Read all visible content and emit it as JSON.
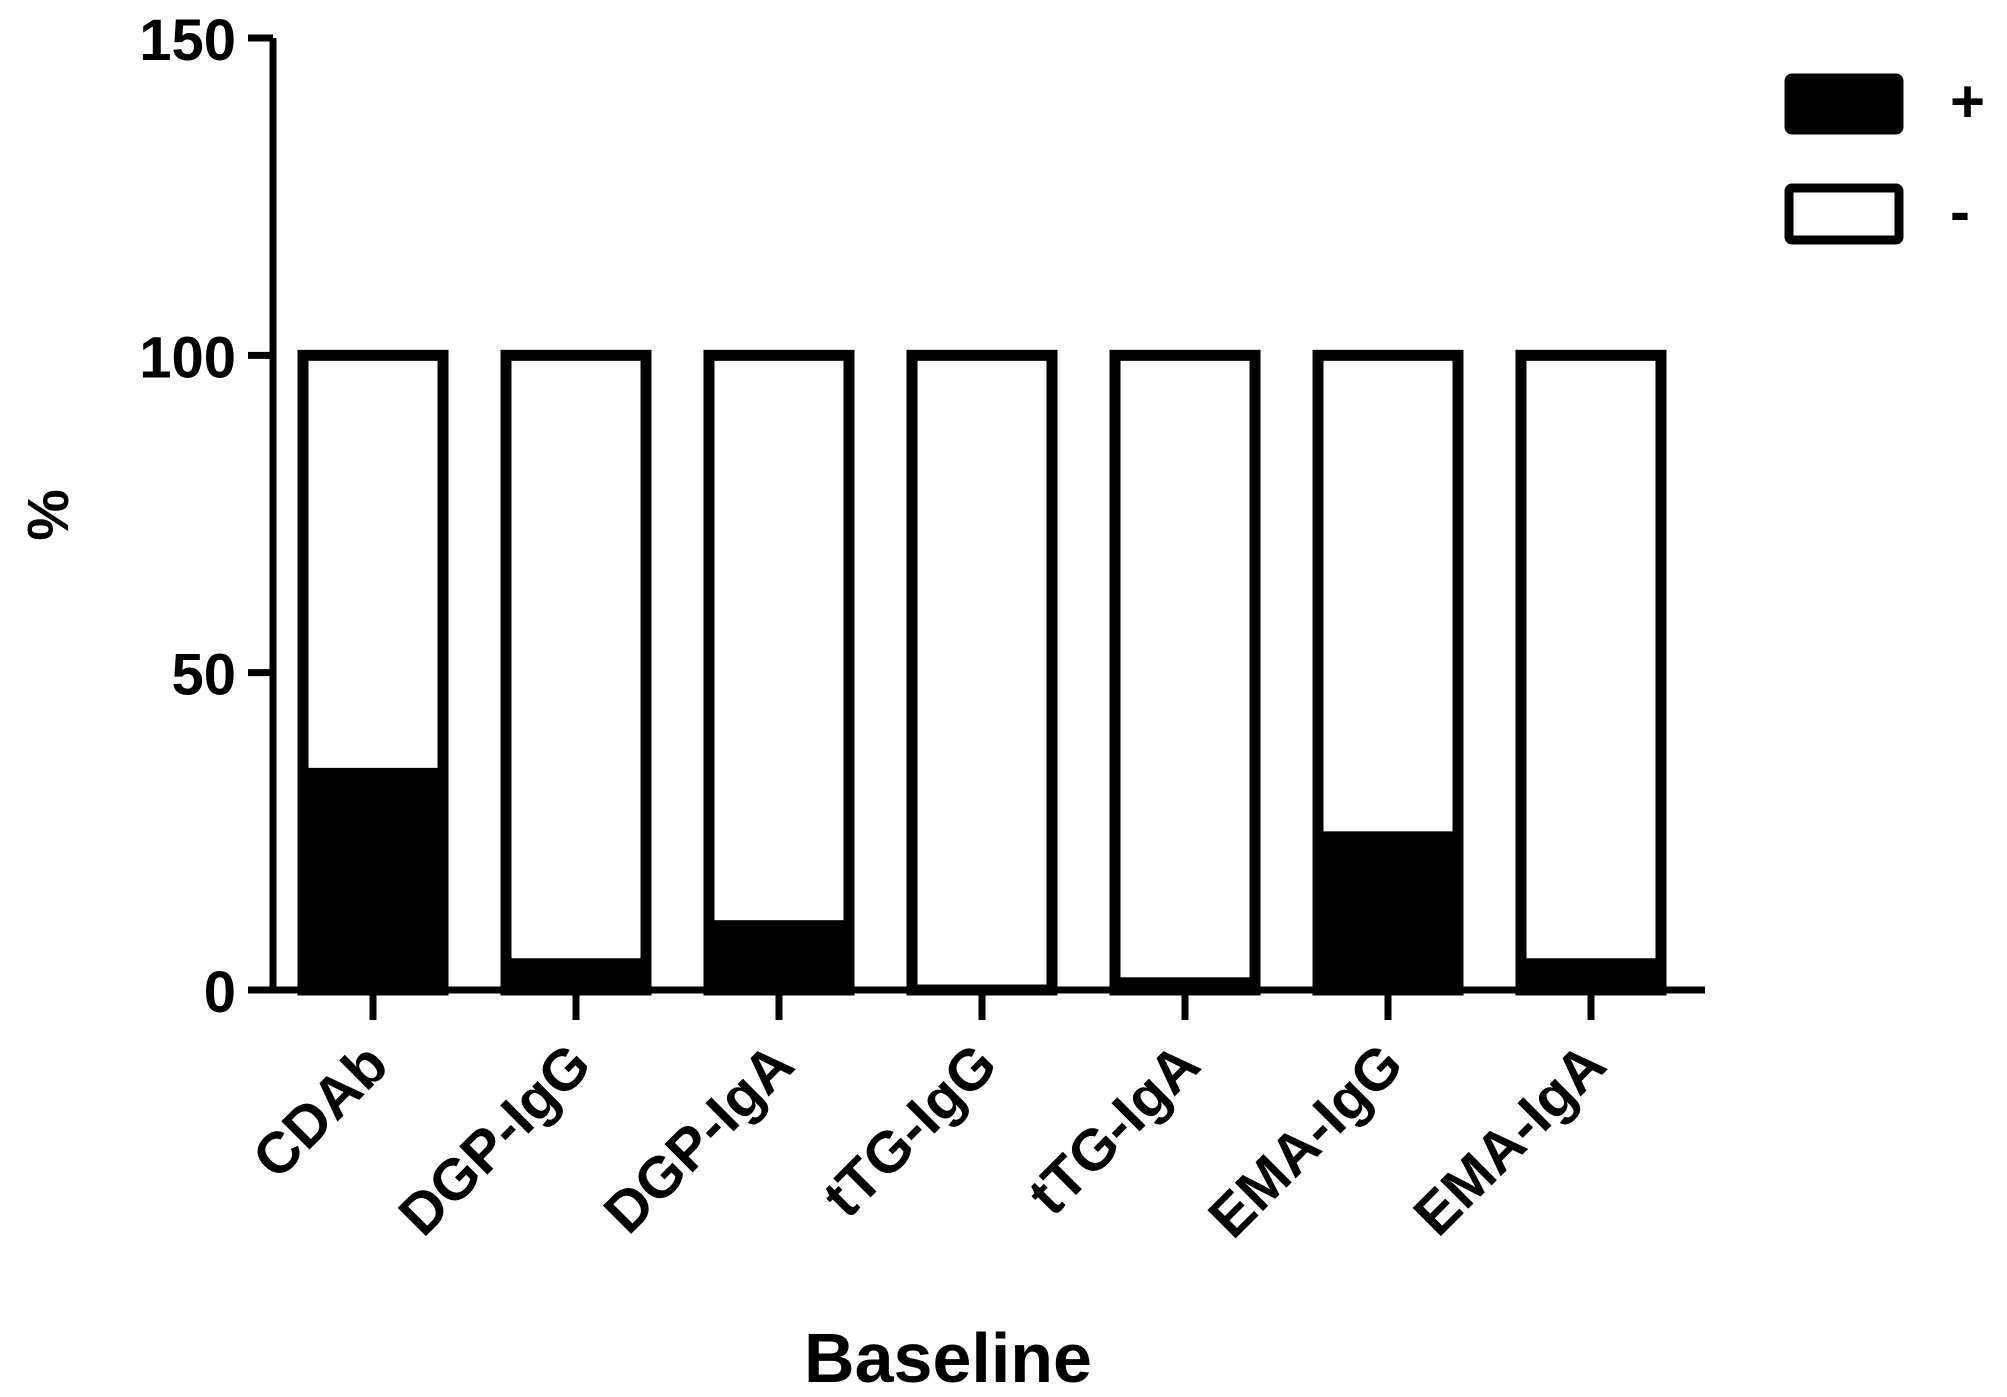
{
  "chart_data": {
    "type": "bar",
    "stacked": true,
    "title": "",
    "xlabel": "Baseline",
    "ylabel": "%",
    "ylim": [
      0,
      150
    ],
    "yticks": [
      0,
      50,
      100,
      150
    ],
    "grid": false,
    "legend_position": "top-right",
    "categories": [
      "CDAb",
      "DGP-IgG",
      "DGP-IgA",
      "tTG-IgG",
      "tTG-IgA",
      "EMA-IgG",
      "EMA-IgA"
    ],
    "series": [
      {
        "name": "+",
        "color": "#000000",
        "values": [
          35,
          5,
          11,
          0,
          2,
          25,
          5
        ]
      },
      {
        "name": "-",
        "color": "#ffffff",
        "values": [
          65,
          95,
          89,
          100,
          98,
          75,
          95
        ]
      }
    ]
  }
}
